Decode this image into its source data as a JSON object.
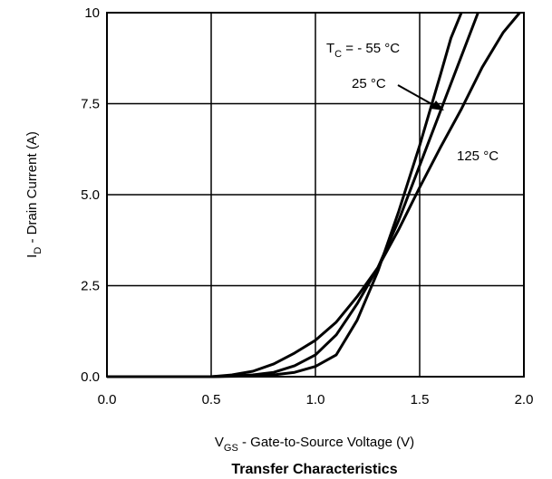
{
  "chart_data": {
    "type": "line",
    "title": "Transfer Characteristics",
    "xlabel": {
      "main": "V",
      "sub": "GS",
      "rest": " - Gate-to-Source Voltage (V)"
    },
    "ylabel": {
      "main": "I",
      "sub": "D",
      "rest": " - Drain Current (A)"
    },
    "xlim": [
      0,
      2.0
    ],
    "ylim": [
      0,
      10
    ],
    "xticks": [
      "0.0",
      "0.5",
      "1.0",
      "1.5",
      "2.0"
    ],
    "yticks": [
      "0.0",
      "2.5",
      "5.0",
      "7.5",
      "10"
    ],
    "grid": true,
    "series": [
      {
        "name": {
          "main": "T",
          "sub": "C",
          "rest": " = - 55 °C"
        },
        "x": [
          0.0,
          0.5,
          0.6,
          0.7,
          0.8,
          0.9,
          1.0,
          1.1,
          1.2,
          1.3,
          1.4,
          1.5,
          1.6,
          1.65,
          1.7
        ],
        "y": [
          0.0,
          0.0,
          0.01,
          0.02,
          0.05,
          0.12,
          0.28,
          0.6,
          1.55,
          2.9,
          4.55,
          6.35,
          8.3,
          9.3,
          10.0
        ]
      },
      {
        "name": {
          "main": "25 °C"
        },
        "x": [
          0.0,
          0.5,
          0.6,
          0.7,
          0.8,
          0.9,
          1.0,
          1.1,
          1.2,
          1.3,
          1.4,
          1.5,
          1.6,
          1.7,
          1.78
        ],
        "y": [
          0.0,
          0.0,
          0.02,
          0.05,
          0.12,
          0.3,
          0.6,
          1.15,
          2.0,
          3.0,
          4.3,
          5.8,
          7.3,
          8.8,
          10.0
        ]
      },
      {
        "name": {
          "main": "125 °C"
        },
        "x": [
          0.0,
          0.5,
          0.6,
          0.7,
          0.8,
          0.9,
          1.0,
          1.1,
          1.2,
          1.3,
          1.4,
          1.5,
          1.6,
          1.7,
          1.8,
          1.9,
          1.98
        ],
        "y": [
          0.0,
          0.0,
          0.05,
          0.15,
          0.35,
          0.65,
          1.0,
          1.5,
          2.2,
          3.0,
          4.05,
          5.2,
          6.3,
          7.35,
          8.5,
          9.45,
          10.0
        ]
      }
    ]
  }
}
